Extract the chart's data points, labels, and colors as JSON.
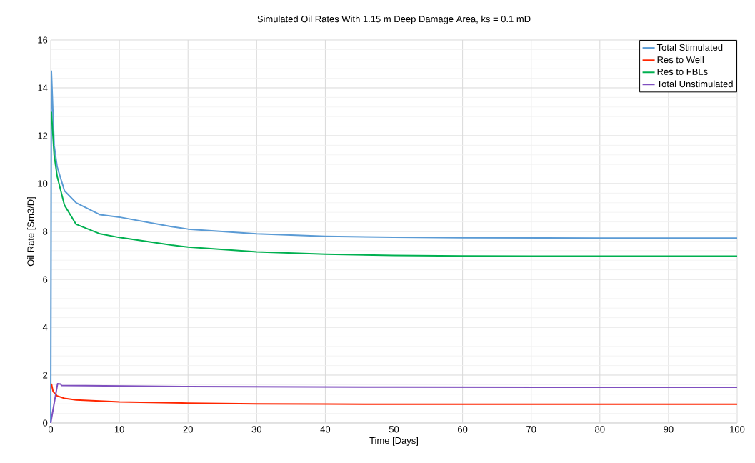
{
  "chart_data": {
    "type": "line",
    "title": "Simulated Oil Rates With 1.15 m Deep Damage Area, ks = 0.1 mD",
    "xlabel": "Time [Days]",
    "ylabel": "Oil Rate [Sm3/D]",
    "xlim": [
      0,
      100
    ],
    "ylim": [
      0,
      16
    ],
    "xticks": [
      0,
      10,
      20,
      30,
      40,
      50,
      60,
      70,
      80,
      90,
      100
    ],
    "yticks": [
      0,
      2,
      4,
      6,
      8,
      10,
      12,
      14,
      16
    ],
    "grid": true,
    "legend": "top right",
    "marker": "none",
    "line_style": "solid",
    "series": [
      {
        "name": "Total Stimulated",
        "color": "#5b9bd5",
        "x": [
          0,
          0.1,
          0.5,
          0.94,
          2,
          3.7,
          7.2,
          10,
          17.6,
          20,
          30,
          40,
          50,
          60,
          70,
          80,
          90,
          100
        ],
        "values": [
          0,
          14.7,
          11.6,
          10.7,
          9.7,
          9.2,
          8.7,
          8.6,
          8.2,
          8.1,
          7.9,
          7.8,
          7.76,
          7.74,
          7.73,
          7.72,
          7.72,
          7.72
        ]
      },
      {
        "name": "Res to Well",
        "color": "#ff2600",
        "x": [
          0.1,
          0.35,
          0.94,
          2,
          3.7,
          10,
          20,
          30,
          40,
          50,
          60,
          70,
          80,
          90,
          100
        ],
        "values": [
          1.64,
          1.31,
          1.13,
          1.03,
          0.96,
          0.88,
          0.83,
          0.8,
          0.79,
          0.78,
          0.78,
          0.78,
          0.78,
          0.78,
          0.78
        ]
      },
      {
        "name": "Res to FBLs",
        "color": "#00b050",
        "x": [
          0.1,
          0.5,
          0.94,
          2,
          3.7,
          7.2,
          10,
          17.6,
          20,
          30,
          40,
          50,
          60,
          70,
          80,
          90,
          100
        ],
        "values": [
          13.0,
          11.2,
          10.3,
          9.1,
          8.3,
          7.9,
          7.75,
          7.43,
          7.35,
          7.15,
          7.05,
          7.0,
          6.98,
          6.97,
          6.97,
          6.97,
          6.97
        ]
      },
      {
        "name": "Total Unstimulated",
        "color": "#7f4fbf",
        "x": [
          0,
          1.0,
          1.45,
          1.55,
          5,
          20,
          50,
          100
        ],
        "values": [
          0,
          1.64,
          1.63,
          1.57,
          1.56,
          1.52,
          1.5,
          1.49
        ]
      }
    ]
  }
}
